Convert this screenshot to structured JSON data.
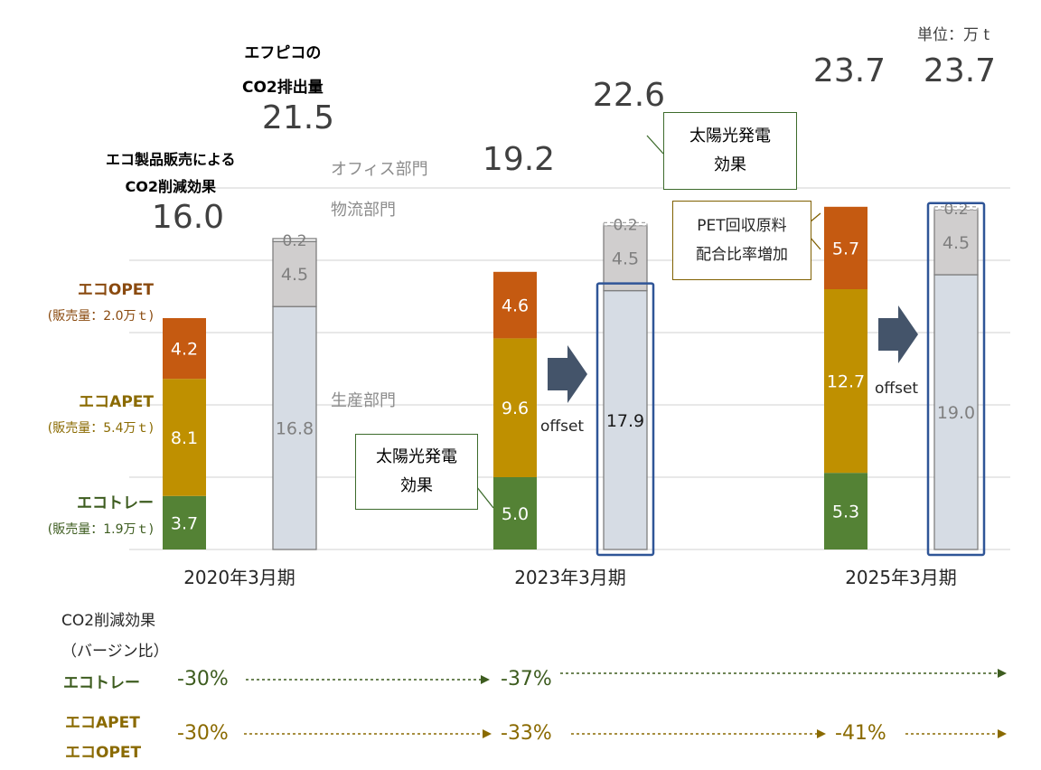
{
  "unit_label": "単位：万 t",
  "header_ef": [
    "エフピコの",
    "CO2排出量"
  ],
  "header_eco": [
    "エコ製品販売による",
    "CO2削減効果"
  ],
  "legend": {
    "opet": {
      "title": "エコOPET",
      "sub": "(販売量：2.0万ｔ)",
      "color": "#8a4a0f"
    },
    "apet": {
      "title": "エコAPET",
      "sub": "(販売量：5.4万ｔ)",
      "color": "#8a6a00"
    },
    "tray": {
      "title": "エコトレー",
      "sub": "(販売量：1.9万ｔ)",
      "color": "#3d5c1f"
    }
  },
  "dept_labels": {
    "office": "オフィス部門",
    "logistics": "物流部門",
    "production": "生産部門"
  },
  "callouts": {
    "solar_2023": [
      "太陽光発電",
      "効果"
    ],
    "solar_2020": [
      "太陽光発電",
      "効果"
    ],
    "pet": [
      "PET回収原料",
      "配合比率増加"
    ]
  },
  "offset_label": "offset",
  "reduction": {
    "title": "CO2削減効果",
    "subtitle": "（バージン比）",
    "tray_label": "エコトレー",
    "apet_label": "エコAPET",
    "opet_label": "エコOPET",
    "tray_values": [
      "-30%",
      "-37%"
    ],
    "apet_opet_values": [
      "-30%",
      "-33%",
      "-41%"
    ]
  },
  "colors": {
    "tray": "#548235",
    "apet": "#bf9000",
    "opet": "#c55a11",
    "production": "#d6dce4",
    "logistics": "#d0cece",
    "bar_border": "#7f7f7f",
    "highlight": "#2f5597",
    "arrow": "#44546a",
    "solar_border": "#3d6b2c",
    "pet_border": "#806000"
  },
  "chart_data": {
    "type": "bar",
    "stacked": true,
    "categories": [
      "2020年3月期",
      "2023年3月期",
      "2025年3月期"
    ],
    "ylim": [
      0,
      25
    ],
    "grid": true,
    "unit": "単位：万 t",
    "groups": [
      {
        "category": "2020年3月期",
        "eco_bar": {
          "total": 16.0,
          "segments": [
            {
              "series": "エコトレー",
              "value": 3.7
            },
            {
              "series": "エコAPET",
              "value": 8.1
            },
            {
              "series": "エコOPET",
              "value": 4.2
            }
          ]
        },
        "emission_bar": {
          "total": 21.5,
          "segments": [
            {
              "series": "生産部門",
              "value": 16.8
            },
            {
              "series": "物流部門",
              "value": 4.5
            },
            {
              "series": "オフィス部門",
              "value": 0.2
            }
          ]
        }
      },
      {
        "category": "2023年3月期",
        "eco_bar": {
          "total": 19.2,
          "segments": [
            {
              "series": "エコトレー",
              "value": 5.0
            },
            {
              "series": "エコAPET",
              "value": 9.6
            },
            {
              "series": "エコOPET",
              "value": 4.6
            }
          ]
        },
        "emission_bar": {
          "total": 22.6,
          "segments": [
            {
              "series": "生産部門",
              "value": 17.9
            },
            {
              "series": "物流部門",
              "value": 4.5
            },
            {
              "series": "オフィス部門",
              "value": 0.2
            }
          ]
        }
      },
      {
        "category": "2025年3月期",
        "eco_bar": {
          "total": 23.7,
          "segments": [
            {
              "series": "エコトレー",
              "value": 5.3
            },
            {
              "series": "エコAPET",
              "value": 12.7
            },
            {
              "series": "エコOPET",
              "value": 5.7
            }
          ]
        },
        "emission_bar": {
          "total": 23.7,
          "segments": [
            {
              "series": "生産部門",
              "value": 19.0
            },
            {
              "series": "物流部門",
              "value": 4.5
            },
            {
              "series": "オフィス部門",
              "value": 0.2
            }
          ]
        }
      }
    ]
  }
}
